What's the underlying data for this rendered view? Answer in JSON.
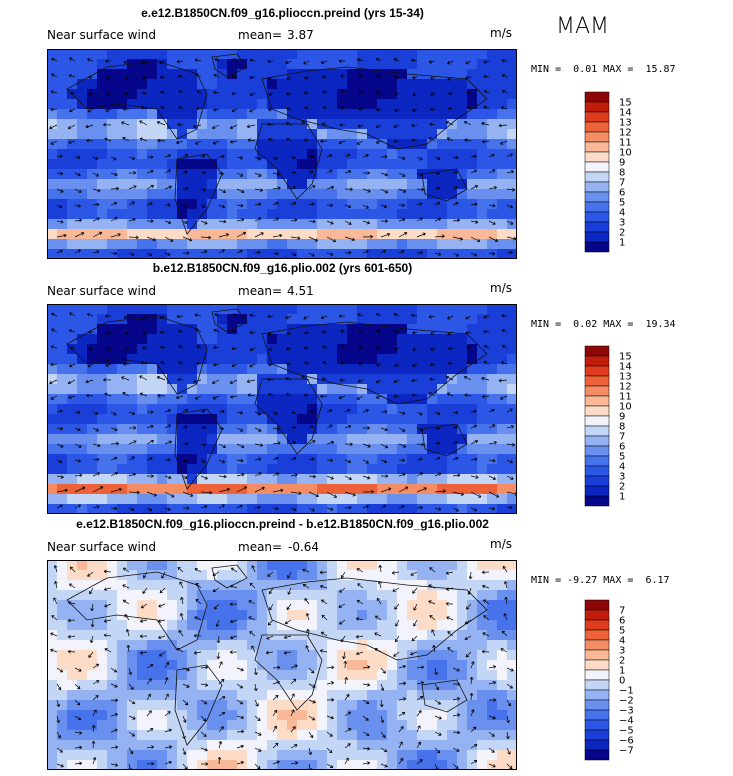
{
  "season": "MAM",
  "colors": {
    "fill_scale": [
      "#06068a",
      "#0c26c2",
      "#1a3fd8",
      "#2c57e6",
      "#4672ec",
      "#6a90ef",
      "#95b3f2",
      "#c4d6f6",
      "#f2f3fb",
      "#fcdcc6",
      "#f9b897",
      "#f48d64",
      "#ee6239",
      "#df3b1d",
      "#c21c0c",
      "#8e0707"
    ],
    "land_outline": "#111111",
    "arrow": "#000000"
  },
  "panels": [
    {
      "title": "e.e12.B1850CN.f09_g16.plioccn.preind (yrs 15-34)",
      "variable": "Near surface wind",
      "mean_label": "mean=",
      "mean": "3.87",
      "units": "m/s",
      "min_label": "MIN =",
      "min": "0.01",
      "max_label": "MAX =",
      "max": "15.87",
      "levels": [
        "15",
        "14",
        "13",
        "12",
        "11",
        "10",
        "9",
        "8",
        "7",
        "6",
        "5",
        "4",
        "3",
        "2",
        "1"
      ]
    },
    {
      "title": "b.e12.B1850CN.f09_g16.plio.002 (yrs 601-650)",
      "variable": "Near surface wind",
      "mean_label": "mean=",
      "mean": "4.51",
      "units": "m/s",
      "min_label": "MIN =",
      "min": "0.02",
      "max_label": "MAX =",
      "max": "19.34",
      "levels": [
        "15",
        "14",
        "13",
        "12",
        "11",
        "10",
        "9",
        "8",
        "7",
        "6",
        "5",
        "4",
        "3",
        "2",
        "1"
      ]
    },
    {
      "title": "e.e12.B1850CN.f09_g16.plioccn.preind - b.e12.B1850CN.f09_g16.plio.002",
      "variable": "Near surface wind",
      "mean_label": "mean=",
      "mean": "-0.64",
      "units": "m/s",
      "min_label": "MIN =",
      "min": "-9.27",
      "max_label": "MAX =",
      "max": "6.17",
      "levels": [
        "7",
        "6",
        "5",
        "4",
        "3",
        "2",
        "1",
        "0",
        "−1",
        "−2",
        "−3",
        "−4",
        "−5",
        "−6",
        "−7"
      ]
    }
  ],
  "chart_data": [
    {
      "type": "heatmap",
      "title": "e.e12.B1850CN.f09_g16.plioccn.preind (yrs 15-34)",
      "variable": "Near surface wind",
      "units": "m/s",
      "mean": 3.87,
      "min": 0.01,
      "max": 15.87,
      "contour_levels": [
        1,
        2,
        3,
        4,
        5,
        6,
        7,
        8,
        9,
        10,
        11,
        12,
        13,
        14,
        15
      ],
      "overlay": "wind vectors",
      "projection": "global lat-lon"
    },
    {
      "type": "heatmap",
      "title": "b.e12.B1850CN.f09_g16.plio.002 (yrs 601-650)",
      "variable": "Near surface wind",
      "units": "m/s",
      "mean": 4.51,
      "min": 0.02,
      "max": 19.34,
      "contour_levels": [
        1,
        2,
        3,
        4,
        5,
        6,
        7,
        8,
        9,
        10,
        11,
        12,
        13,
        14,
        15
      ],
      "overlay": "wind vectors",
      "projection": "global lat-lon"
    },
    {
      "type": "heatmap",
      "title": "e.e12.B1850CN.f09_g16.plioccn.preind - b.e12.B1850CN.f09_g16.plio.002",
      "variable": "Near surface wind",
      "units": "m/s",
      "mean": -0.64,
      "min": -9.27,
      "max": 6.17,
      "contour_levels": [
        -7,
        -6,
        -5,
        -4,
        -3,
        -2,
        -1,
        0,
        1,
        2,
        3,
        4,
        5,
        6,
        7
      ],
      "overlay": "wind vectors",
      "projection": "global lat-lon"
    }
  ]
}
